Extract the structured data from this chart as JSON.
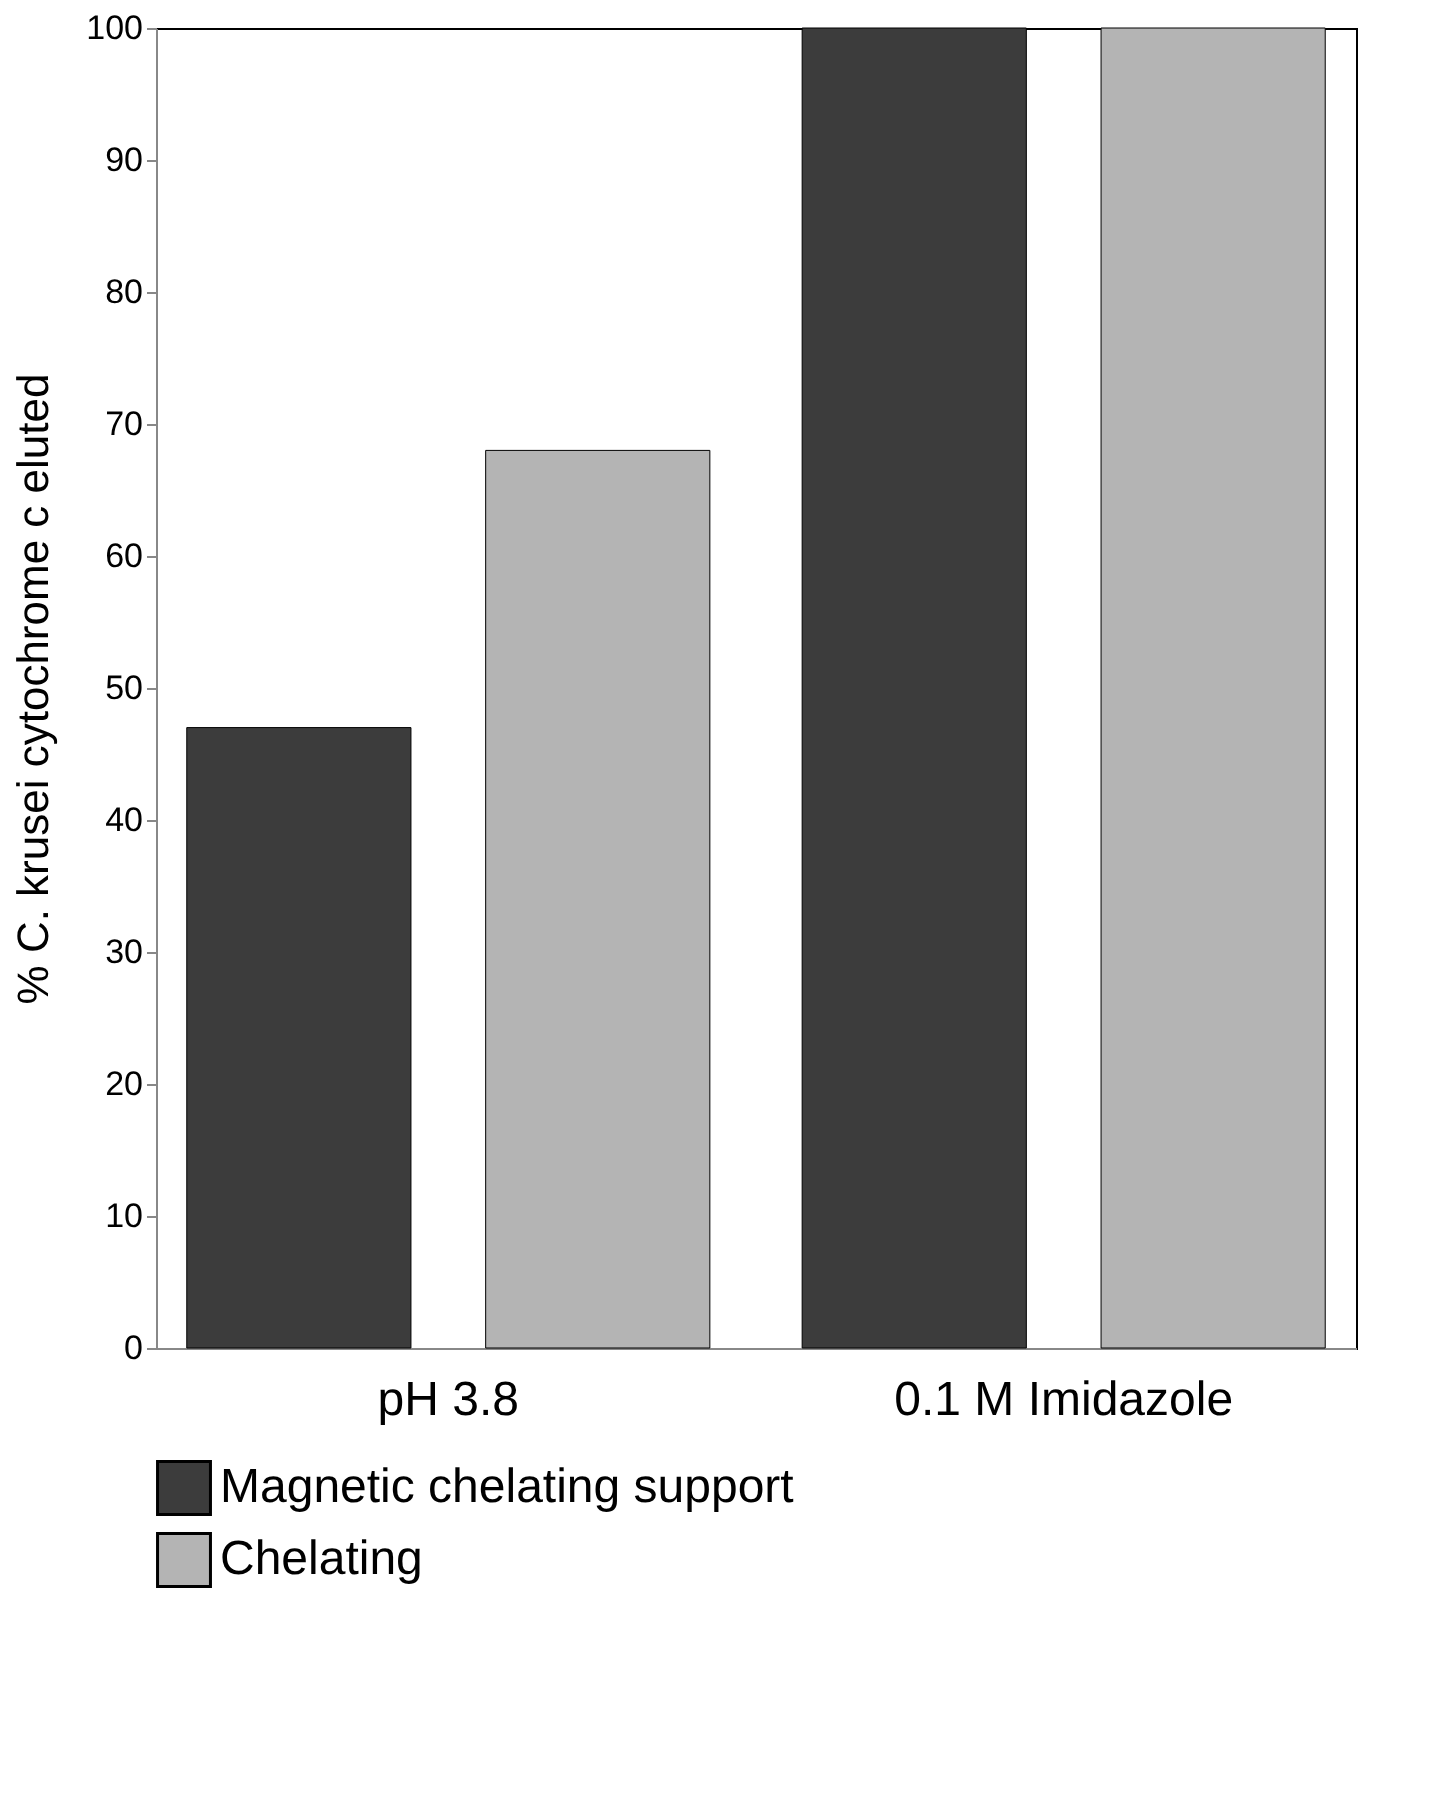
{
  "chart_data": {
    "type": "bar",
    "ylabel": "% C. krusei cytochrome c eluted",
    "categories": [
      "pH 3.8",
      "0.1 M Imidazole"
    ],
    "series": [
      {
        "name": "Magnetic chelating support",
        "color": "#3c3c3c",
        "values": [
          47,
          100
        ]
      },
      {
        "name": "Chelating",
        "color": "#b4b4b4",
        "values": [
          68,
          100
        ]
      }
    ],
    "ylim": [
      0,
      100
    ],
    "yticks": [
      0,
      10,
      20,
      30,
      40,
      50,
      60,
      70,
      80,
      90,
      100
    ],
    "grid": false,
    "legend": "bottom"
  }
}
